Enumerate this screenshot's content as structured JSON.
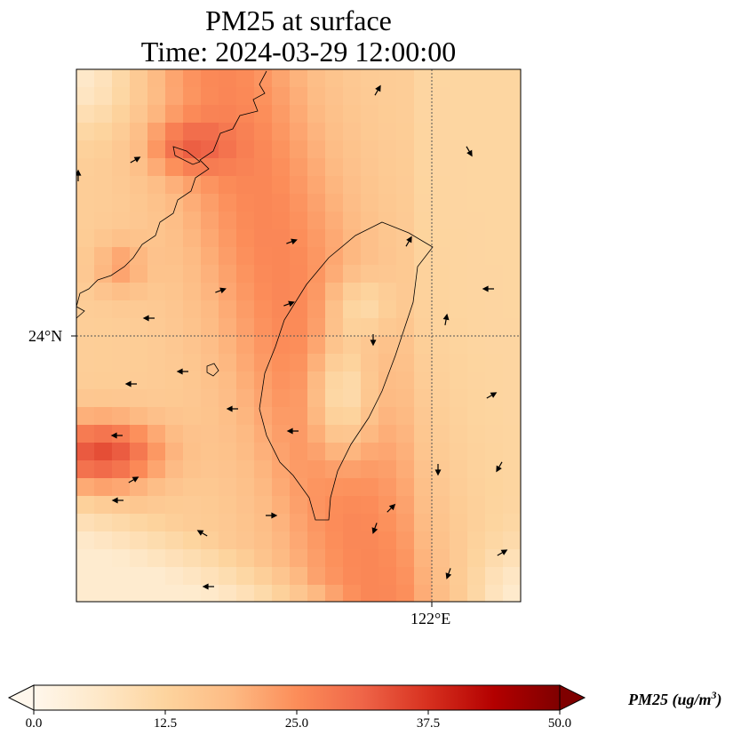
{
  "title": {
    "line1": "PM25 at surface",
    "line2": "Time: 2024-03-29 12:00:00"
  },
  "axes": {
    "lat_label": "24°N",
    "lon_label": "122°E"
  },
  "colorbar": {
    "label": "PM25 (ug/m",
    "label_sup": "3",
    "label_end": ")",
    "ticks": [
      "0.0",
      "12.5",
      "25.0",
      "37.5",
      "50.0"
    ],
    "range": [
      0,
      50
    ],
    "colormap": [
      "#fff7ec",
      "#fee8c8",
      "#fdd49e",
      "#fdbb84",
      "#fc8d59",
      "#ef6548",
      "#d7301f",
      "#b30000",
      "#7f0000"
    ],
    "extend": "both"
  }
}
